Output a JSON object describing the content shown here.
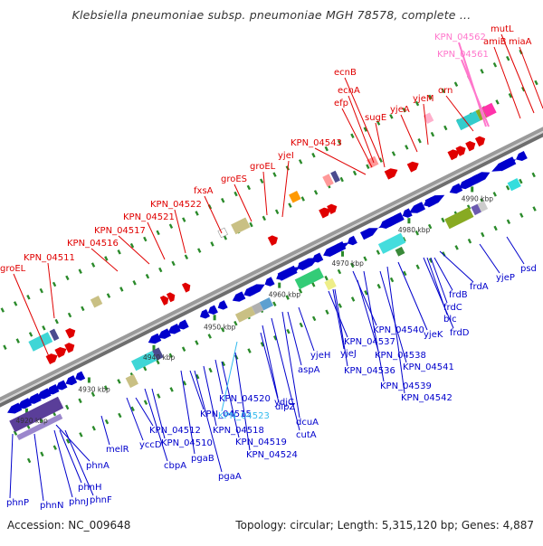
{
  "title": "Klebsiella pneumoniae subsp. pneumoniae MGH 78578, complete ...",
  "footer": {
    "accession": "Accession: NC_009648",
    "summary": "Topology: circular; Length: 5,315,120 bp; Genes: 4,887"
  },
  "colors": {
    "forward": "#e00000",
    "reverse": "#0000cc",
    "pseudo": "#ff77cc",
    "highlight": "#33bbee",
    "backbone": "#888888",
    "tick": "#2a8a2a"
  },
  "ticks": [
    "4920 kbp",
    "4930 kbp",
    "4940 kbp",
    "4950 kbp",
    "4960 kbp",
    "4970 kbp",
    "4980 kbp",
    "4990 kbp"
  ],
  "forward_labels": [
    "groEL",
    "KPN_04511",
    "KPN_04516",
    "KPN_04517",
    "KPN_04521",
    "KPN_04522",
    "fxsA",
    "groES",
    "groEL",
    "yjeI",
    "KPN_04543",
    "efp",
    "ecnA",
    "ecnB",
    "sugE",
    "yjeA",
    "yjeM",
    "orn",
    "KPN_04562",
    "KPN_04561",
    "amiB",
    "mutL",
    "miaA"
  ],
  "reverse_labels": [
    "phnP",
    "phnN",
    "phnJ",
    "phnF",
    "phnH",
    "phnA",
    "melR",
    "yccD",
    "cbpA",
    "KPN_04512",
    "KPN_04510",
    "pgaB",
    "pgaA",
    "KPN_04515",
    "KPN_04520",
    "KPN_04518",
    "KPN_04519",
    "KPN_04523",
    "KPN_04524",
    "dipZ",
    "ydjC",
    "cutA",
    "dcuA",
    "aspA",
    "yjeH",
    "KPN_04537",
    "yjeJ",
    "KPN_04536",
    "KPN_04540",
    "KPN_04538",
    "KPN_04539",
    "KPN_04541",
    "KPN_04542",
    "yjeK",
    "frdD",
    "blc",
    "frdC",
    "frdB",
    "frdA",
    "yjeP",
    "psd"
  ]
}
